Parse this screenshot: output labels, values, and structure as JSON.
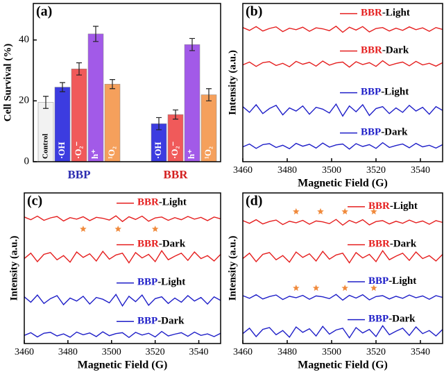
{
  "chart_data": [
    {
      "type": "bar",
      "label": "(a)",
      "ylabel": "Cell Survival (%)",
      "categories": [
        "BBP",
        "BBR"
      ],
      "category_colors": [
        "#2b2bb0",
        "#d42020"
      ],
      "ylim": [
        0,
        52
      ],
      "yticks": [
        0,
        20,
        40
      ],
      "series": [
        {
          "name": "Control",
          "color": "#f2f2f2",
          "values": [
            19.5,
            null
          ],
          "errors": [
            2,
            null
          ]
        },
        {
          "name": "·OH",
          "color": "#3c3ce0",
          "values": [
            24.5,
            12.5
          ],
          "errors": [
            1.5,
            2
          ]
        },
        {
          "name": "·O₂⁻",
          "color": "#f05a5a",
          "values": [
            30.5,
            15.5
          ],
          "errors": [
            2,
            1.5
          ]
        },
        {
          "name": "h⁺",
          "color": "#a25ae8",
          "values": [
            42,
            38.5
          ],
          "errors": [
            2.5,
            2
          ]
        },
        {
          "name": "¹O₂",
          "color": "#f5a05c",
          "values": [
            25.5,
            22
          ],
          "errors": [
            1.5,
            2
          ]
        }
      ]
    },
    {
      "type": "line",
      "label": "(b)",
      "xlabel": "Magnetic Field (G)",
      "ylabel": "Intensity (a.u.)",
      "xlim": [
        3460,
        3550
      ],
      "xticks": [
        3460,
        3480,
        3500,
        3520,
        3540
      ],
      "ylim": [
        0,
        5
      ],
      "x": [
        3460,
        3463,
        3466,
        3469,
        3472,
        3475,
        3478,
        3481,
        3484,
        3487,
        3490,
        3493,
        3496,
        3499,
        3502,
        3505,
        3508,
        3511,
        3514,
        3517,
        3520,
        3523,
        3526,
        3529,
        3532,
        3535,
        3538,
        3541,
        3544,
        3547,
        3550
      ],
      "series": [
        {
          "name": "BBR-Light",
          "color": "#e51e1e",
          "values": [
            4.24,
            4.15,
            4.27,
            4.13,
            4.21,
            4.26,
            4.11,
            4.22,
            4.17,
            4.25,
            4.12,
            4.23,
            4.2,
            4.14,
            4.28,
            4.09,
            4.25,
            4.16,
            4.27,
            4.1,
            4.21,
            4.24,
            4.13,
            4.22,
            4.15,
            4.26,
            4.17,
            4.23,
            4.12,
            4.24,
            4.18
          ]
        },
        {
          "name": "BBR-Dark",
          "color": "#e51e1e",
          "values": [
            3.06,
            3.15,
            3.01,
            3.13,
            3.16,
            3.04,
            3.11,
            3.0,
            3.17,
            3.08,
            3.14,
            3.02,
            3.18,
            3.05,
            3.12,
            3.15,
            2.99,
            3.16,
            3.07,
            3.13,
            3.01,
            3.19,
            3.04,
            3.1,
            3.15,
            3.03,
            3.17,
            3.06,
            3.11,
            3.02,
            3.13
          ]
        },
        {
          "name": "BBP-Light",
          "color": "#1e1ec8",
          "values": [
            1.74,
            1.56,
            1.8,
            1.52,
            1.68,
            1.78,
            1.48,
            1.7,
            1.6,
            1.76,
            1.5,
            1.72,
            1.66,
            1.54,
            1.82,
            1.44,
            1.76,
            1.58,
            1.8,
            1.46,
            1.68,
            1.74,
            1.52,
            1.7,
            1.56,
            1.78,
            1.6,
            1.72,
            1.5,
            1.74,
            1.62
          ]
        },
        {
          "name": "BBP-Dark",
          "color": "#1e1ec8",
          "values": [
            0.47,
            0.56,
            0.42,
            0.54,
            0.57,
            0.45,
            0.52,
            0.41,
            0.58,
            0.49,
            0.55,
            0.43,
            0.59,
            0.46,
            0.53,
            0.56,
            0.4,
            0.57,
            0.48,
            0.54,
            0.42,
            0.6,
            0.45,
            0.51,
            0.56,
            0.44,
            0.58,
            0.47,
            0.52,
            0.43,
            0.54
          ]
        }
      ]
    },
    {
      "type": "line",
      "label": "(c)",
      "xlabel": "Magnetic Field (G)",
      "ylabel": "Intensity (a.u.)",
      "xlim": [
        3460,
        3550
      ],
      "xticks": [
        3460,
        3480,
        3500,
        3520,
        3540
      ],
      "ylim": [
        0,
        5
      ],
      "x": [
        3460,
        3463,
        3466,
        3469,
        3472,
        3475,
        3478,
        3481,
        3484,
        3487,
        3490,
        3493,
        3496,
        3499,
        3502,
        3505,
        3508,
        3511,
        3514,
        3517,
        3520,
        3523,
        3526,
        3529,
        3532,
        3535,
        3538,
        3541,
        3544,
        3547,
        3550
      ],
      "series": [
        {
          "name": "BBR-Light",
          "color": "#e51e1e",
          "values": [
            4.2,
            4.11,
            4.23,
            4.09,
            4.17,
            4.22,
            4.07,
            4.18,
            4.13,
            4.21,
            4.08,
            4.19,
            4.16,
            4.1,
            4.24,
            4.05,
            4.21,
            4.12,
            4.23,
            4.06,
            4.17,
            4.2,
            4.09,
            4.18,
            4.11,
            4.22,
            4.13,
            4.19,
            4.08,
            4.2,
            4.14
          ]
        },
        {
          "name": "BBR-Dark",
          "color": "#e51e1e",
          "values": [
            2.82,
            3.0,
            2.72,
            2.96,
            3.02,
            2.78,
            2.92,
            2.7,
            3.04,
            2.86,
            2.98,
            2.74,
            3.06,
            2.8,
            2.94,
            3.0,
            2.68,
            3.02,
            2.84,
            2.96,
            2.72,
            3.08,
            2.78,
            2.9,
            3.0,
            2.76,
            3.04,
            2.82,
            2.92,
            2.74,
            2.96
          ]
        },
        {
          "name": "BBP-Light",
          "color": "#1e1ec8",
          "values": [
            1.55,
            1.37,
            1.61,
            1.33,
            1.49,
            1.59,
            1.29,
            1.51,
            1.41,
            1.57,
            1.31,
            1.53,
            1.47,
            1.35,
            1.63,
            1.25,
            1.57,
            1.39,
            1.61,
            1.27,
            1.49,
            1.55,
            1.33,
            1.51,
            1.37,
            1.59,
            1.41,
            1.53,
            1.31,
            1.55,
            1.43
          ]
        },
        {
          "name": "BBP-Dark",
          "color": "#1e1ec8",
          "values": [
            0.27,
            0.36,
            0.22,
            0.34,
            0.37,
            0.25,
            0.32,
            0.21,
            0.38,
            0.29,
            0.35,
            0.23,
            0.39,
            0.26,
            0.33,
            0.36,
            0.2,
            0.37,
            0.28,
            0.34,
            0.22,
            0.4,
            0.25,
            0.31,
            0.36,
            0.24,
            0.38,
            0.27,
            0.32,
            0.23,
            0.34
          ]
        }
      ],
      "markers": {
        "color": "#f08a3c",
        "points": [
          {
            "x": 3487,
            "y": 3.8
          },
          {
            "x": 3503,
            "y": 3.8
          },
          {
            "x": 3520,
            "y": 3.8
          }
        ]
      }
    },
    {
      "type": "line",
      "label": "(d)",
      "xlabel": "Magnetic Field (G)",
      "ylabel": "Intensity (a.u.)",
      "xlim": [
        3460,
        3550
      ],
      "xticks": [
        3460,
        3480,
        3500,
        3520,
        3540
      ],
      "ylim": [
        0,
        5
      ],
      "x": [
        3460,
        3463,
        3466,
        3469,
        3472,
        3475,
        3478,
        3481,
        3484,
        3487,
        3490,
        3493,
        3496,
        3499,
        3502,
        3505,
        3508,
        3511,
        3514,
        3517,
        3520,
        3523,
        3526,
        3529,
        3532,
        3535,
        3538,
        3541,
        3544,
        3547,
        3550
      ],
      "series": [
        {
          "name": "BBR-Light",
          "color": "#e51e1e",
          "values": [
            4.08,
            3.99,
            4.11,
            3.97,
            4.05,
            4.1,
            3.95,
            4.06,
            4.01,
            4.09,
            3.96,
            4.07,
            4.04,
            3.98,
            4.12,
            3.93,
            4.09,
            4.0,
            4.11,
            3.94,
            4.05,
            4.08,
            3.97,
            4.06,
            3.99,
            4.1,
            4.01,
            4.07,
            3.96,
            4.08,
            4.02
          ]
        },
        {
          "name": "BBR-Dark",
          "color": "#e51e1e",
          "values": [
            2.82,
            3.0,
            2.72,
            2.96,
            3.02,
            2.78,
            2.92,
            2.7,
            3.04,
            2.86,
            2.98,
            2.74,
            3.06,
            2.8,
            2.94,
            3.0,
            2.68,
            3.02,
            2.84,
            2.96,
            2.72,
            3.08,
            2.78,
            2.9,
            3.0,
            2.76,
            3.04,
            2.82,
            2.92,
            2.74,
            2.96
          ]
        },
        {
          "name": "BBP-Light",
          "color": "#1e1ec8",
          "values": [
            1.59,
            1.5,
            1.62,
            1.48,
            1.56,
            1.61,
            1.46,
            1.57,
            1.52,
            1.6,
            1.47,
            1.58,
            1.55,
            1.49,
            1.63,
            1.44,
            1.6,
            1.51,
            1.62,
            1.45,
            1.56,
            1.59,
            1.48,
            1.57,
            1.5,
            1.61,
            1.52,
            1.58,
            1.47,
            1.59,
            1.53
          ]
        },
        {
          "name": "BBP-Dark",
          "color": "#1e1ec8",
          "values": [
            0.33,
            0.51,
            0.23,
            0.47,
            0.53,
            0.29,
            0.43,
            0.21,
            0.55,
            0.37,
            0.49,
            0.25,
            0.57,
            0.31,
            0.45,
            0.51,
            0.19,
            0.53,
            0.35,
            0.47,
            0.23,
            0.59,
            0.29,
            0.41,
            0.51,
            0.27,
            0.55,
            0.33,
            0.43,
            0.25,
            0.47
          ]
        }
      ],
      "markers": {
        "color": "#f08a3c",
        "points": [
          {
            "x": 3484,
            "y": 4.38
          },
          {
            "x": 3495,
            "y": 4.38
          },
          {
            "x": 3506,
            "y": 4.38
          },
          {
            "x": 3519,
            "y": 4.38
          },
          {
            "x": 3484,
            "y": 1.84
          },
          {
            "x": 3493,
            "y": 1.84
          },
          {
            "x": 3506,
            "y": 1.84
          },
          {
            "x": 3519,
            "y": 1.84
          }
        ]
      }
    }
  ]
}
